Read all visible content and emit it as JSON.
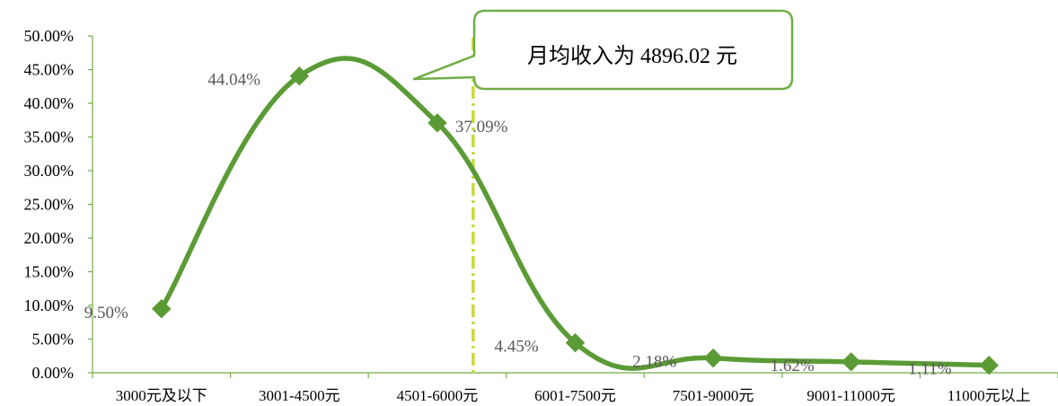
{
  "chart_data": {
    "type": "line",
    "categories": [
      "3000元及以下",
      "3001-4500元",
      "4501-6000元",
      "6001-7500元",
      "7501-9000元",
      "9001-11000元",
      "11000元以上"
    ],
    "series": [
      {
        "values": [
          9.5,
          44.04,
          37.09,
          4.45,
          2.18,
          1.62,
          1.11
        ],
        "labels": [
          "9.50%",
          "44.04%",
          "37.09%",
          "4.45%",
          "2.18%",
          "1.62%",
          "1.11%"
        ]
      }
    ],
    "ylim": [
      0,
      50
    ],
    "yticks": [
      "0.00%",
      "5.00%",
      "10.00%",
      "15.00%",
      "20.00%",
      "25.00%",
      "30.00%",
      "35.00%",
      "40.00%",
      "45.00%",
      "50.00%"
    ],
    "reference_line": {
      "x_category_position": 2.76
    },
    "annotation": "月均收入为 4896.02 元",
    "smooth": true,
    "marker": "diamond",
    "grid": false,
    "legend": "none"
  },
  "colors": {
    "series_line": "#5b9b35",
    "marker": "#5b9b35",
    "reference_line": "#c8d93a",
    "callout_border": "#70ad47",
    "axis": "#70ad47",
    "label": "#595959"
  }
}
